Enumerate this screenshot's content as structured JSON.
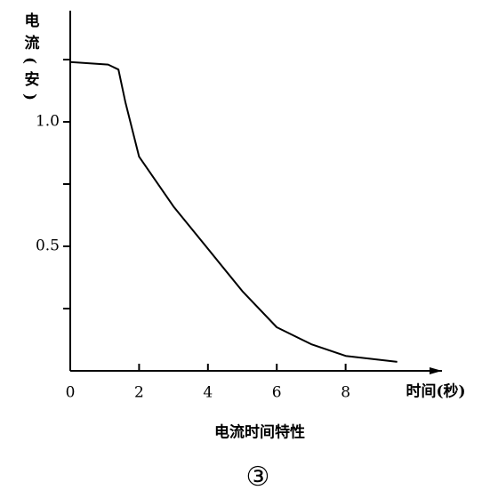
{
  "chart_data": {
    "type": "line",
    "title": "电流时间特性",
    "subtitle": "③",
    "y_label": "电流(安)",
    "x_label": "时间(秒)",
    "x": [
      0,
      1.1,
      1.4,
      1.6,
      2,
      3,
      4,
      5,
      6,
      7,
      8,
      9.5
    ],
    "series": [
      {
        "name": "电流",
        "color": "#000000",
        "values": [
          1.24,
          1.23,
          1.21,
          1.08,
          0.86,
          0.66,
          0.49,
          0.32,
          0.175,
          0.107,
          0.06,
          0.036
        ]
      }
    ],
    "xlim": [
      0,
      10.8
    ],
    "ylim": [
      0,
      1.4
    ],
    "xticks": [
      0,
      2,
      4,
      6,
      8
    ],
    "yticks": [
      {
        "value": 0.5,
        "label": "0.5"
      },
      {
        "value": 1,
        "label": "1.0"
      }
    ],
    "yminor": [
      0.25,
      0.75,
      1.25
    ]
  }
}
